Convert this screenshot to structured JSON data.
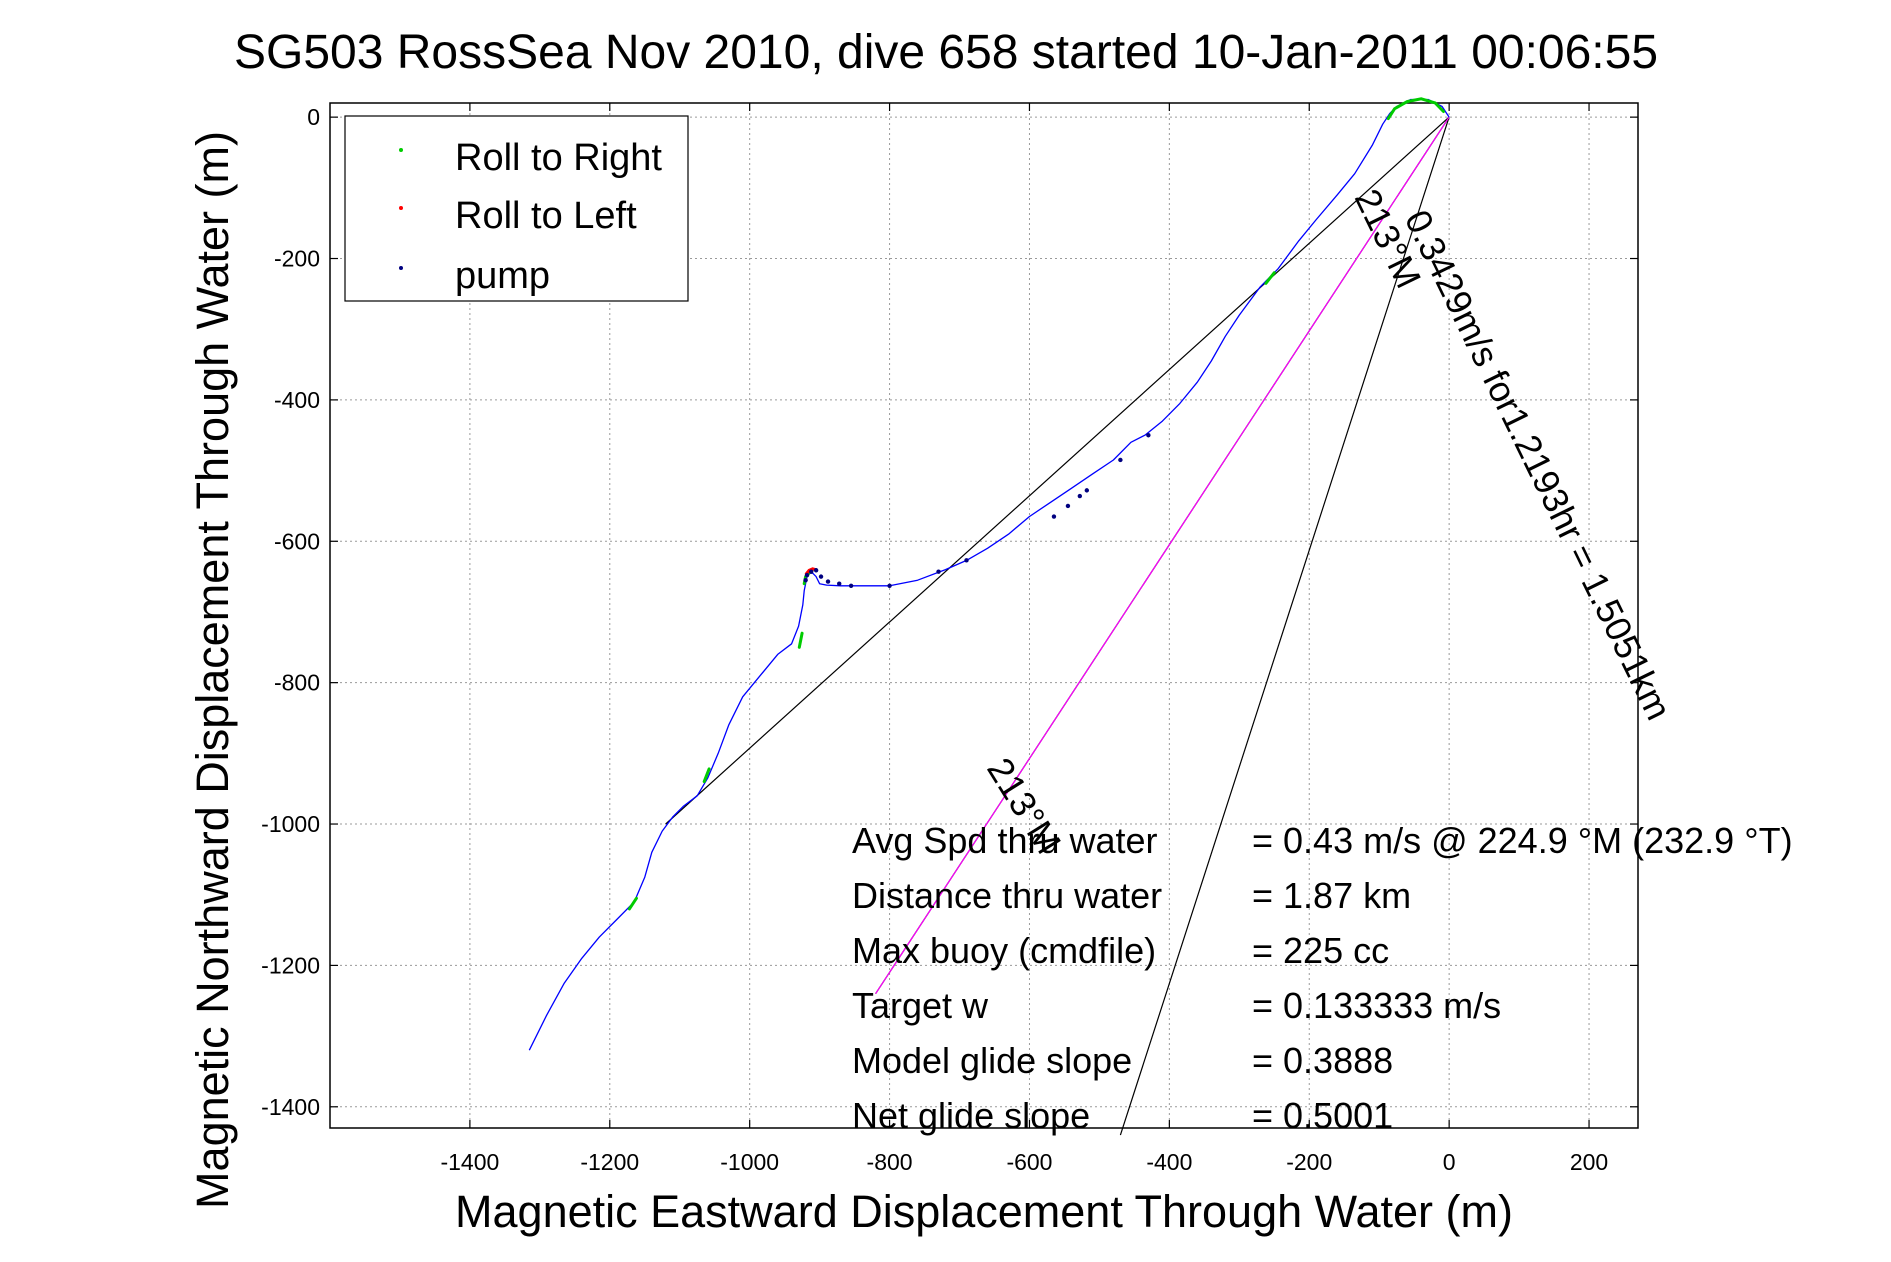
{
  "chart_data": {
    "type": "line",
    "title": "SG503 RossSea Nov 2010, dive 658 started 10-Jan-2011 00:06:55",
    "xlabel": "Magnetic Eastward Displacement Through Water (m)",
    "ylabel": "Magnetic Northward Displacement Through Water (m)",
    "xlim": [
      -1600,
      270
    ],
    "ylim": [
      -1430,
      20
    ],
    "xticks": [
      -1400,
      -1200,
      -1000,
      -800,
      -600,
      -400,
      -200,
      0,
      200
    ],
    "yticks": [
      0,
      -200,
      -400,
      -600,
      -800,
      -1000,
      -1200,
      -1400
    ],
    "grid": true,
    "legend": {
      "position": "top-left",
      "entries": [
        {
          "label": "Roll to Right",
          "color": "#00cc00"
        },
        {
          "label": "Roll to Left",
          "color": "#ff0000"
        },
        {
          "label": "pump",
          "color": "#000080"
        }
      ]
    },
    "track": {
      "color": "#0000ff",
      "x": [
        -1315,
        -1290,
        -1265,
        -1240,
        -1215,
        -1190,
        -1165,
        -1150,
        -1140,
        -1125,
        -1110,
        -1095,
        -1075,
        -1060,
        -1045,
        -1030,
        -1010,
        -985,
        -960,
        -940,
        -930,
        -924,
        -922,
        -920,
        -918,
        -915,
        -910,
        -905,
        -900,
        -890,
        -870,
        -840,
        -800,
        -760,
        -720,
        -690,
        -660,
        -630,
        -600,
        -570,
        -540,
        -510,
        -480,
        -455,
        -435,
        -410,
        -385,
        -360,
        -340,
        -320,
        -300,
        -270,
        -245,
        -215,
        -190,
        -160,
        -135,
        -110,
        -95,
        -85,
        -75,
        -55,
        -30,
        -10,
        0
      ],
      "y": [
        -1320,
        -1270,
        -1225,
        -1190,
        -1160,
        -1135,
        -1110,
        -1075,
        -1040,
        -1010,
        -990,
        -975,
        -960,
        -935,
        -900,
        -860,
        -820,
        -790,
        -760,
        -745,
        -720,
        -690,
        -670,
        -660,
        -650,
        -645,
        -645,
        -650,
        -660,
        -662,
        -663,
        -663,
        -663,
        -655,
        -640,
        -627,
        -610,
        -590,
        -565,
        -545,
        -525,
        -505,
        -485,
        -460,
        -450,
        -430,
        -405,
        -375,
        -345,
        -310,
        -280,
        -240,
        -215,
        -175,
        -145,
        -110,
        -80,
        -40,
        -10,
        5,
        15,
        25,
        25,
        15,
        0
      ]
    },
    "roll_right_segments": [
      {
        "x": [
          -925,
          -929
        ],
        "y": [
          -730,
          -750
        ]
      },
      {
        "x": [
          -1058,
          -1065
        ],
        "y": [
          -922,
          -940
        ]
      },
      {
        "x": [
          -1162,
          -1172
        ],
        "y": [
          -1105,
          -1120
        ]
      },
      {
        "x": [
          -250,
          -262
        ],
        "y": [
          -220,
          -235
        ]
      },
      {
        "x": [
          -87,
          -78,
          -60,
          -40,
          -20,
          -8
        ],
        "y": [
          -2,
          12,
          22,
          26,
          20,
          8
        ]
      },
      {
        "x": [
          -910,
          -915,
          -920,
          -922
        ],
        "y": [
          -640,
          -645,
          -650,
          -660
        ]
      }
    ],
    "roll_left_segments": [
      {
        "x": [
          -919,
          -915,
          -910,
          -906
        ],
        "y": [
          -646,
          -641,
          -639,
          -640
        ]
      }
    ],
    "pump_points": {
      "x": [
        -920,
        -918,
        -912,
        -905,
        -898,
        -888,
        -872,
        -855,
        -800,
        -730,
        -690,
        -565,
        -545,
        -528,
        -518,
        -470,
        -430
      ],
      "y": [
        -655,
        -648,
        -643,
        -641,
        -650,
        -657,
        -660,
        -663,
        -663,
        -643,
        -627,
        -565,
        -550,
        -536,
        -528,
        -485,
        -450
      ]
    },
    "annotation_lines": [
      {
        "x": [
          -1120,
          0
        ],
        "y": [
          -1000,
          0
        ],
        "color": "#000000"
      },
      {
        "x": [
          -470,
          0
        ],
        "y": [
          -1440,
          0
        ],
        "color": "#000000"
      },
      {
        "x": [
          -820,
          0
        ],
        "y": [
          -1240,
          0
        ],
        "color": "#000000"
      },
      {
        "x": [
          -820,
          0
        ],
        "y": [
          -1240,
          0
        ],
        "color": "#ff00ff"
      }
    ],
    "rotated_labels": {
      "speed": "0.3429m/s for1.2193hr = 1.5051km",
      "heading_top": "213°M",
      "heading_bottom": "213°M"
    },
    "stats": [
      {
        "label": "Avg Spd thru water",
        "value": "=  0.43 m/s @ 224.9 °M (232.9 °T)"
      },
      {
        "label": "Distance thru water",
        "value": "=  1.87 km"
      },
      {
        "label": "Max buoy (cmdfile)",
        "value": "= 225 cc"
      },
      {
        "label": "Target w",
        "value": "= 0.133333 m/s"
      },
      {
        "label": "Model glide slope",
        "value": "= 0.3888"
      },
      {
        "label": "Net glide slope",
        "value": "= 0.5001"
      }
    ]
  }
}
